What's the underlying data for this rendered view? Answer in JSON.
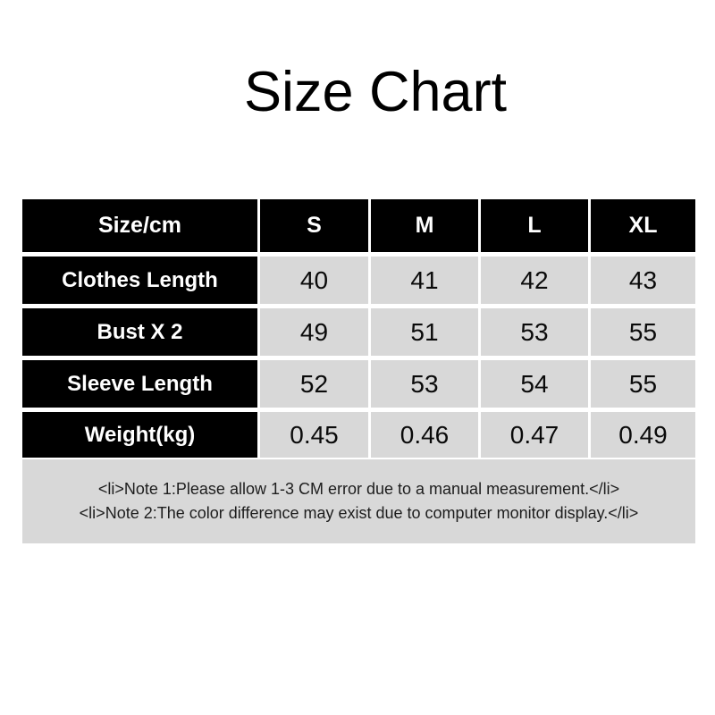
{
  "page": {
    "title": "Size Chart"
  },
  "colors": {
    "header_bg": "#000000",
    "header_text": "#ffffff",
    "value_cell_bg": "#d8d8d8",
    "value_text": "#0a0a0a",
    "notes_bg": "#d8d8d8",
    "page_bg": "#ffffff"
  },
  "size_table": {
    "unit_header": "Size/cm",
    "columns": [
      "S",
      "M",
      "L",
      "XL"
    ],
    "rows": [
      {
        "label": "Clothes Length",
        "values": [
          "40",
          "41",
          "42",
          "43"
        ]
      },
      {
        "label": "Bust X 2",
        "values": [
          "49",
          "51",
          "53",
          "55"
        ]
      },
      {
        "label": "Sleeve Length",
        "values": [
          "52",
          "53",
          "54",
          "55"
        ]
      },
      {
        "label": "Weight(kg)",
        "values": [
          "0.45",
          "0.46",
          "0.47",
          "0.49"
        ]
      }
    ]
  },
  "notes": {
    "line1": "<li>Note 1:Please allow 1-3 CM error due to a manual measurement.</li>",
    "line2": "<li>Note 2:The color difference may exist due to computer monitor display.</li>"
  }
}
